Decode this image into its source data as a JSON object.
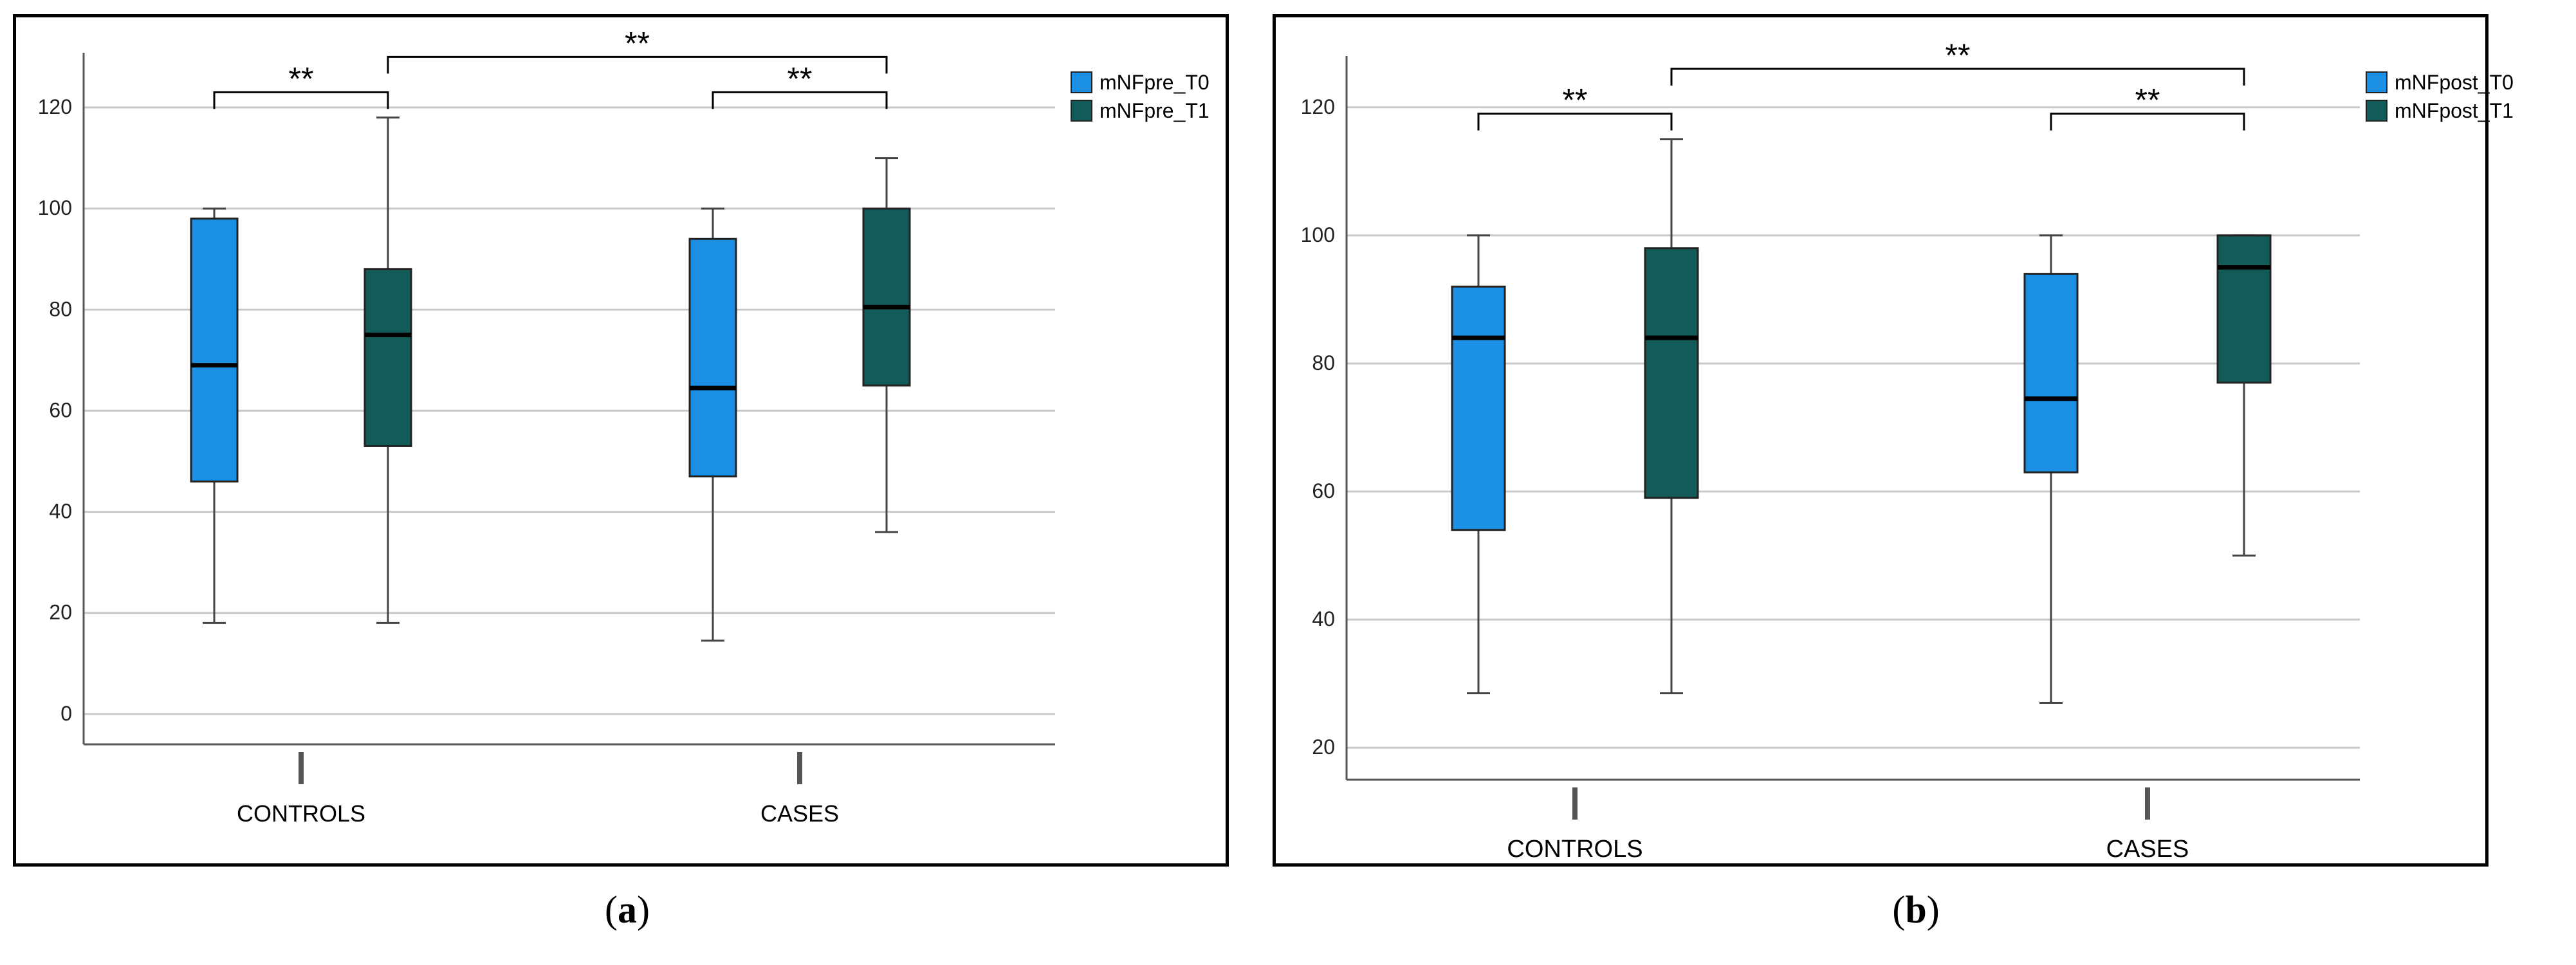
{
  "colors": {
    "t0": "#1a8fe3",
    "t1": "#135b59",
    "grid": "#c8c8c8",
    "axis": "#555555",
    "text": "#000000"
  },
  "chart_data": [
    {
      "type": "boxplot",
      "panel_label": "a",
      "categories": [
        "CONTROLS",
        "CASES"
      ],
      "ylim": [
        -6,
        127
      ],
      "yticks": [
        0,
        20,
        40,
        60,
        80,
        100,
        120
      ],
      "grid": true,
      "legend_position": "top-right",
      "series": [
        {
          "name": "mNFpre_T0",
          "boxes": [
            {
              "min": 18,
              "q1": 46,
              "median": 69,
              "q3": 98,
              "max": 100
            },
            {
              "min": 14.5,
              "q1": 47,
              "median": 64.5,
              "q3": 94,
              "max": 100
            }
          ]
        },
        {
          "name": "mNFpre_T1",
          "boxes": [
            {
              "min": 18,
              "q1": 53,
              "median": 75,
              "q3": 88,
              "max": 118
            },
            {
              "min": 36,
              "q1": 65,
              "median": 80.5,
              "q3": 100,
              "max": 110
            }
          ]
        }
      ],
      "annotations": [
        {
          "text": "**",
          "from": [
            0,
            0
          ],
          "to": [
            0,
            1
          ],
          "y": 123
        },
        {
          "text": "**",
          "from": [
            1,
            0
          ],
          "to": [
            1,
            1
          ],
          "y": 123
        },
        {
          "text": "**",
          "from": [
            0,
            1
          ],
          "to": [
            1,
            1
          ],
          "y": 130
        }
      ]
    },
    {
      "type": "boxplot",
      "panel_label": "b",
      "categories": [
        "CONTROLS",
        "CASES"
      ],
      "ylim": [
        15,
        125
      ],
      "yticks": [
        20,
        40,
        60,
        80,
        100,
        120
      ],
      "grid": true,
      "legend_position": "top-right",
      "series": [
        {
          "name": "mNFpost_T0",
          "boxes": [
            {
              "min": 28.5,
              "q1": 54,
              "median": 84,
              "q3": 92,
              "max": 100
            },
            {
              "min": 27,
              "q1": 63,
              "median": 74.5,
              "q3": 94,
              "max": 100
            }
          ]
        },
        {
          "name": "mNFpost_T1",
          "boxes": [
            {
              "min": 28.5,
              "q1": 59,
              "median": 84,
              "q3": 98,
              "max": 115
            },
            {
              "min": 50,
              "q1": 77,
              "median": 95,
              "q3": 100,
              "max": 100
            }
          ]
        }
      ],
      "annotations": [
        {
          "text": "**",
          "from": [
            0,
            0
          ],
          "to": [
            0,
            1
          ],
          "y": 119
        },
        {
          "text": "**",
          "from": [
            1,
            0
          ],
          "to": [
            1,
            1
          ],
          "y": 119
        },
        {
          "text": "**",
          "from": [
            0,
            1
          ],
          "to": [
            1,
            1
          ],
          "y": 126
        }
      ]
    }
  ]
}
